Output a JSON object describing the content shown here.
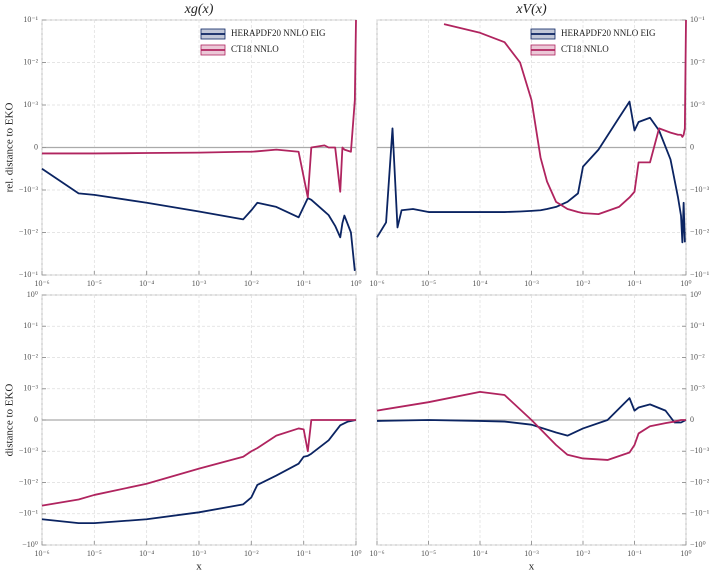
{
  "chart_data": [
    {
      "type": "line",
      "title": "xg(x)",
      "ylabel": "rel. distance to EKO",
      "xscale": "log",
      "yscale": "symlog",
      "linthresh": 0.001,
      "legend": "upper right",
      "grid": true,
      "yaxis_side": "left",
      "xlim": [
        1e-06,
        1
      ],
      "ylim": [
        -0.1,
        0.1
      ],
      "xticks": [
        {
          "value": 1e-06,
          "label": "10⁻⁶"
        },
        {
          "value": 1e-05,
          "label": "10⁻⁵"
        },
        {
          "value": 0.0001,
          "label": "10⁻⁴"
        },
        {
          "value": 0.001,
          "label": "10⁻³"
        },
        {
          "value": 0.01,
          "label": "10⁻²"
        },
        {
          "value": 0.1,
          "label": "10⁻¹"
        },
        {
          "value": 1,
          "label": "10⁰"
        }
      ],
      "yticks": [
        {
          "value": -0.1,
          "label": "−10⁻¹"
        },
        {
          "value": -0.01,
          "label": "−10⁻²"
        },
        {
          "value": -0.001,
          "label": "−10⁻³"
        },
        0,
        {
          "value": 0.001,
          "label": "10⁻³"
        },
        {
          "value": 0.01,
          "label": "10⁻²"
        },
        {
          "value": 0.1,
          "label": "10⁻¹"
        }
      ],
      "x": [
        1e-06,
        5e-06,
        1e-05,
        0.0001,
        0.001,
        0.007,
        0.01,
        0.013,
        0.03,
        0.08,
        0.12,
        0.14,
        0.25,
        0.3,
        0.4,
        0.5,
        0.55,
        0.6,
        0.8,
        0.95,
        1
      ],
      "series": [
        {
          "name": "HERAPDF20 NNLO EIG",
          "color": "#0b2462",
          "values": [
            -0.0005,
            -0.0012,
            -0.0013,
            -0.002,
            -0.0032,
            -0.0049,
            -0.003,
            -0.002,
            -0.0025,
            -0.0044,
            -0.00155,
            -0.0017,
            -0.0032,
            -0.0039,
            -0.007,
            -0.013,
            -0.006,
            -0.004,
            -0.01,
            -0.08,
            null
          ]
        },
        {
          "name": "CT18 NNLO",
          "color": "#b0245f",
          "values": [
            -0.00014,
            -0.00014,
            -0.00014,
            -0.00013,
            -0.00012,
            -0.0001,
            -0.0001,
            -9e-05,
            -5e-05,
            -0.0001,
            -0.0015,
            0,
            5e-05,
            0,
            0,
            -0.0011,
            0,
            -5e-05,
            -0.0001,
            0.0013,
            0.1
          ]
        }
      ]
    },
    {
      "type": "line",
      "title": "xV(x)",
      "xscale": "log",
      "yscale": "symlog",
      "linthresh": 0.001,
      "legend": "upper right",
      "grid": true,
      "yaxis_side": "right",
      "xlim": [
        1e-06,
        1
      ],
      "ylim": [
        -0.1,
        0.1
      ],
      "xticks": [
        {
          "value": 1e-06,
          "label": "10⁻⁶"
        },
        {
          "value": 1e-05,
          "label": "10⁻⁵"
        },
        {
          "value": 0.0001,
          "label": "10⁻⁴"
        },
        {
          "value": 0.001,
          "label": "10⁻³"
        },
        {
          "value": 0.01,
          "label": "10⁻²"
        },
        {
          "value": 0.1,
          "label": "10⁻¹"
        },
        {
          "value": 1,
          "label": "10⁰"
        }
      ],
      "yticks": [
        {
          "value": -0.1,
          "label": "−10⁻¹"
        },
        {
          "value": -0.01,
          "label": "−10⁻²"
        },
        {
          "value": -0.001,
          "label": "−10⁻³"
        },
        0,
        {
          "value": 0.001,
          "label": "10⁻³"
        },
        {
          "value": 0.01,
          "label": "10⁻²"
        },
        {
          "value": 0.1,
          "label": "10⁻¹"
        }
      ],
      "x": [
        1e-06,
        1.5e-06,
        2e-06,
        2.5e-06,
        3e-06,
        5e-06,
        1e-05,
        2e-05,
        0.0001,
        0.0003,
        0.0006,
        0.001,
        0.0015,
        0.002,
        0.003,
        0.005,
        0.008,
        0.01,
        0.02,
        0.05,
        0.08,
        0.1,
        0.12,
        0.2,
        0.3,
        0.5,
        0.7,
        0.8,
        0.85,
        0.9,
        0.95,
        1
      ],
      "series": [
        {
          "name": "HERAPDF20 NNLO EIG",
          "color": "#0b2462",
          "values": [
            -0.013,
            -0.0058,
            0.00045,
            -0.0076,
            -0.003,
            -0.0028,
            -0.0033,
            -0.0033,
            -0.0033,
            -0.0033,
            -0.0032,
            -0.0031,
            -0.003,
            -0.0028,
            -0.0025,
            -0.0019,
            -0.0012,
            -0.00045,
            -5e-05,
            0.0007,
            0.0012,
            0.0004,
            0.0006,
            0.0007,
            0.0004,
            -0.00028,
            -0.0015,
            -0.004,
            -0.017,
            -0.002,
            -0.017,
            null
          ]
        },
        {
          "name": "CT18 NNLO",
          "color": "#b0245f",
          "values": [
            null,
            null,
            null,
            null,
            null,
            null,
            null,
            0.08,
            0.05,
            0.03,
            0.01,
            0.0013,
            -0.00024,
            -0.0008,
            -0.0019,
            -0.0028,
            -0.0033,
            -0.0035,
            -0.0037,
            -0.0025,
            -0.0015,
            -0.0011,
            -0.00035,
            -0.00035,
            0.00045,
            0.00035,
            0.0003,
            0.0003,
            0.00025,
            0.0003,
            0.00045,
            0.1
          ]
        }
      ]
    },
    {
      "type": "line",
      "ylabel": "distance to EKO",
      "xlabel": "x",
      "xscale": "log",
      "yscale": "symlog",
      "linthresh": 0.001,
      "grid": true,
      "yaxis_side": "left",
      "xlim": [
        1e-06,
        1
      ],
      "ylim": [
        -1,
        1
      ],
      "xticks": [
        {
          "value": 1e-06,
          "label": "10⁻⁶"
        },
        {
          "value": 1e-05,
          "label": "10⁻⁵"
        },
        {
          "value": 0.0001,
          "label": "10⁻⁴"
        },
        {
          "value": 0.001,
          "label": "10⁻³"
        },
        {
          "value": 0.01,
          "label": "10⁻²"
        },
        {
          "value": 0.1,
          "label": "10⁻¹"
        },
        {
          "value": 1,
          "label": "10⁰"
        }
      ],
      "yticks": [
        {
          "value": -1,
          "label": "−10⁰"
        },
        {
          "value": -0.1,
          "label": "−10⁻¹"
        },
        {
          "value": -0.01,
          "label": "−10⁻²"
        },
        {
          "value": -0.001,
          "label": "−10⁻³"
        },
        0,
        {
          "value": 0.001,
          "label": "10⁻³"
        },
        {
          "value": 0.01,
          "label": "10⁻²"
        },
        {
          "value": 0.1,
          "label": "10⁻¹"
        },
        {
          "value": 1,
          "label": "10⁰"
        }
      ],
      "x": [
        1e-06,
        5e-06,
        1e-05,
        0.0001,
        0.001,
        0.007,
        0.01,
        0.013,
        0.03,
        0.08,
        0.1,
        0.12,
        0.14,
        0.3,
        0.5,
        0.7,
        1
      ],
      "series": [
        {
          "color": "#0b2462",
          "values": [
            -0.15,
            -0.2,
            -0.2,
            -0.15,
            -0.09,
            -0.05,
            -0.03,
            -0.012,
            -0.006,
            -0.0025,
            -0.0015,
            -0.0014,
            -0.0012,
            -0.00065,
            -0.00017,
            -5e-05,
            0
          ]
        },
        {
          "color": "#b0245f",
          "values": [
            -0.055,
            -0.035,
            -0.025,
            -0.011,
            -0.0036,
            -0.0015,
            -0.001,
            -0.0009,
            -0.0005,
            -0.00027,
            -0.0003,
            -0.001,
            0,
            0,
            0,
            0,
            0
          ]
        }
      ]
    },
    {
      "type": "line",
      "xlabel": "x",
      "xscale": "log",
      "yscale": "symlog",
      "linthresh": 0.001,
      "grid": true,
      "yaxis_side": "right",
      "xlim": [
        1e-06,
        1
      ],
      "ylim": [
        -1,
        1
      ],
      "xticks": [
        {
          "value": 1e-06,
          "label": "10⁻⁶"
        },
        {
          "value": 1e-05,
          "label": "10⁻⁵"
        },
        {
          "value": 0.0001,
          "label": "10⁻⁴"
        },
        {
          "value": 0.001,
          "label": "10⁻³"
        },
        {
          "value": 0.01,
          "label": "10⁻²"
        },
        {
          "value": 0.1,
          "label": "10⁻¹"
        },
        {
          "value": 1,
          "label": "10⁰"
        }
      ],
      "yticks": [
        {
          "value": -1,
          "label": "−10⁰"
        },
        {
          "value": -0.1,
          "label": "−10⁻¹"
        },
        {
          "value": -0.01,
          "label": "−10⁻²"
        },
        {
          "value": -0.001,
          "label": "−10⁻³"
        },
        0,
        {
          "value": 0.001,
          "label": "10⁻³"
        },
        {
          "value": 0.01,
          "label": "10⁻²"
        },
        {
          "value": 0.1,
          "label": "10⁻¹"
        },
        {
          "value": 1,
          "label": "10⁰"
        }
      ],
      "x": [
        1e-06,
        1e-05,
        0.0001,
        0.0003,
        0.001,
        0.003,
        0.005,
        0.01,
        0.03,
        0.08,
        0.1,
        0.12,
        0.2,
        0.4,
        0.6,
        0.8,
        1
      ],
      "series": [
        {
          "color": "#0b2462",
          "values": [
            -3e-05,
            0,
            -3e-05,
            -5e-05,
            -0.00015,
            -0.0004,
            -0.0005,
            -0.00027,
            0,
            0.0007,
            0.0003,
            0.0004,
            0.0005,
            0.0003,
            -8e-05,
            -8e-05,
            0
          ]
        },
        {
          "color": "#b0245f",
          "values": [
            0.0003,
            0.00057,
            0.0009,
            0.0008,
            0,
            -0.0008,
            -0.0013,
            -0.0017,
            -0.0019,
            -0.0011,
            -0.0008,
            -0.00043,
            -0.0002,
            -0.0001,
            -5e-05,
            0,
            0
          ]
        }
      ]
    }
  ]
}
